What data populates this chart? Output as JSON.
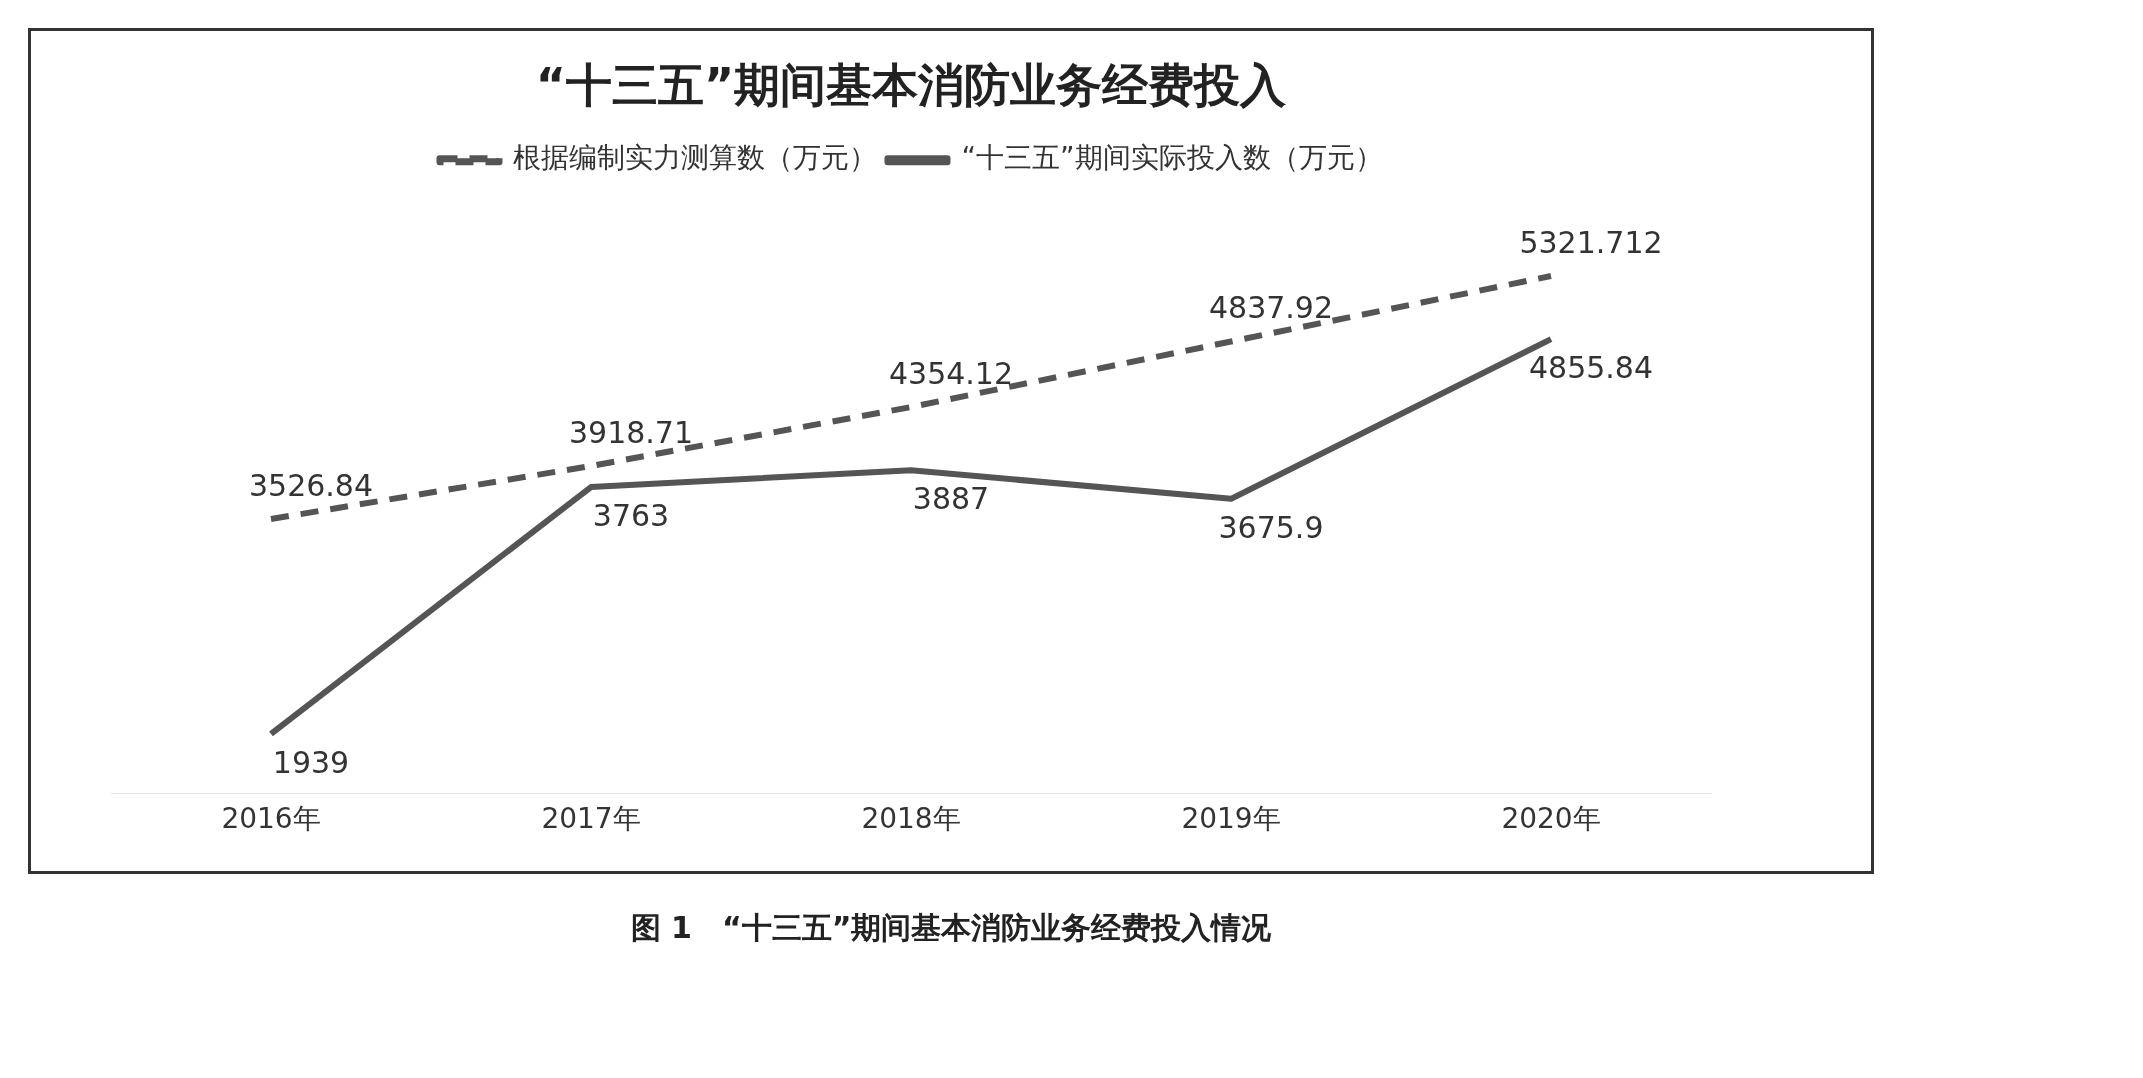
{
  "chart_data": {
    "type": "line",
    "title": "“十三五”期间基本消防业务经费投入",
    "categories": [
      "2016年",
      "2017年",
      "2018年",
      "2019年",
      "2020年"
    ],
    "series": [
      {
        "name": "根据编制实力测算数（万元）",
        "color": "#555555",
        "line_style": "dashed",
        "values": [
          3526.84,
          3918.71,
          4354.12,
          4837.92,
          5321.712
        ]
      },
      {
        "name": "“十三五”期间实际投入数（万元）",
        "color": "#555555",
        "line_style": "solid",
        "values": [
          1939,
          3763,
          3887,
          3675.9,
          4855.84
        ]
      }
    ],
    "data_labels": true,
    "legend": "top",
    "grid": false,
    "marker": "none",
    "annotations": [
      "图 1　“十三五”期间基本消防业务经费投入情况"
    ]
  }
}
